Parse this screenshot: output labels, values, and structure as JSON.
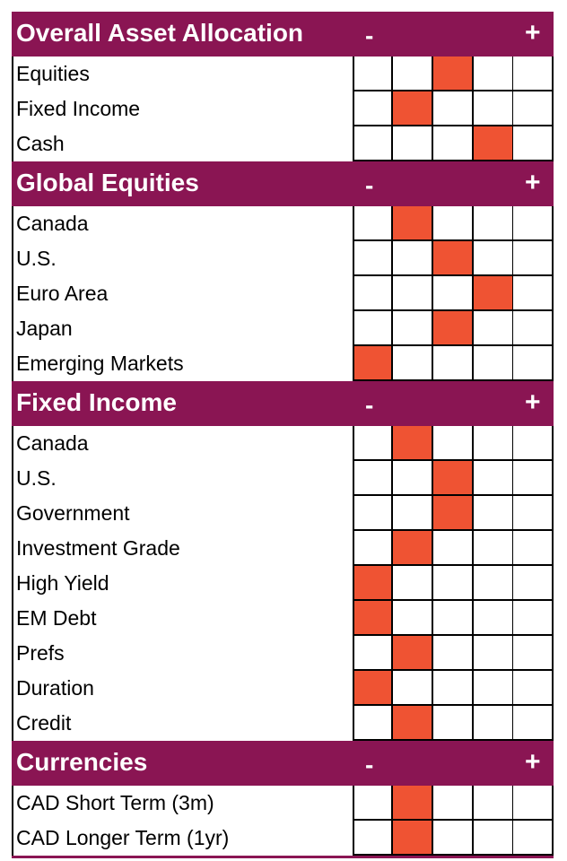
{
  "chart_data": {
    "type": "table",
    "scale": {
      "min_label": "-",
      "max_label": "+",
      "positions": 5
    },
    "colors": {
      "header": "#8a1553",
      "marker": "#ef5333",
      "grid": "#000000"
    },
    "sections": [
      {
        "title": "Overall Asset Allocation",
        "rows": [
          {
            "label": "Equities",
            "position": 3
          },
          {
            "label": "Fixed Income",
            "position": 2
          },
          {
            "label": "Cash",
            "position": 4
          }
        ]
      },
      {
        "title": "Global Equities",
        "rows": [
          {
            "label": "Canada",
            "position": 2
          },
          {
            "label": "U.S.",
            "position": 3
          },
          {
            "label": "Euro Area",
            "position": 4
          },
          {
            "label": "Japan",
            "position": 3
          },
          {
            "label": "Emerging Markets",
            "position": 1
          }
        ]
      },
      {
        "title": "Fixed Income",
        "rows": [
          {
            "label": "Canada",
            "position": 2
          },
          {
            "label": "U.S.",
            "position": 3
          },
          {
            "label": "Government",
            "position": 3
          },
          {
            "label": "Investment Grade",
            "position": 2
          },
          {
            "label": "High Yield",
            "position": 1
          },
          {
            "label": "EM Debt",
            "position": 1
          },
          {
            "label": "Prefs",
            "position": 2
          },
          {
            "label": "Duration",
            "position": 1
          },
          {
            "label": "Credit",
            "position": 2
          }
        ]
      },
      {
        "title": "Currencies",
        "rows": [
          {
            "label": "CAD Short Term (3m)",
            "position": 2
          },
          {
            "label": "CAD Longer Term (1yr)",
            "position": 2
          }
        ]
      }
    ]
  }
}
